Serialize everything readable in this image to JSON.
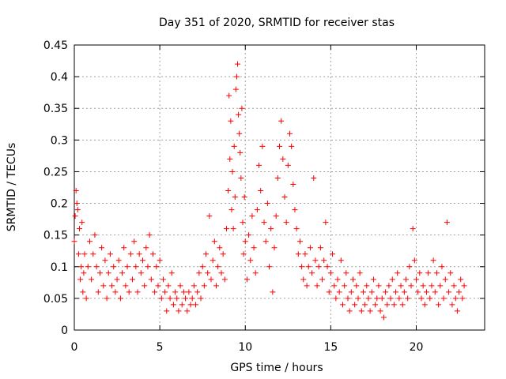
{
  "chart_data": {
    "type": "scatter",
    "title": "Day 351 of 2020, SRMTID for receiver stas",
    "xlabel": "GPS time / hours",
    "ylabel": "SRMTID / TECUs",
    "xlim": [
      0,
      24
    ],
    "ylim": [
      0,
      0.45
    ],
    "xticks": [
      0,
      5,
      10,
      15,
      20
    ],
    "xtick_labels": [
      "0",
      "5",
      "10",
      "15",
      "20"
    ],
    "yticks": [
      0,
      0.05,
      0.1,
      0.15,
      0.2,
      0.25,
      0.3,
      0.35,
      0.4,
      0.45
    ],
    "ytick_labels": [
      "0",
      "0.05",
      "0.1",
      "0.15",
      "0.2",
      "0.25",
      "0.3",
      "0.35",
      "0.4",
      "0.45"
    ],
    "grid": true,
    "marker": "+",
    "marker_color": "#ff0000",
    "series": [
      {
        "name": "SRMTID",
        "points": [
          [
            0.0,
            0.14
          ],
          [
            0.05,
            0.18
          ],
          [
            0.1,
            0.22
          ],
          [
            0.15,
            0.2
          ],
          [
            0.2,
            0.19
          ],
          [
            0.25,
            0.12
          ],
          [
            0.3,
            0.16
          ],
          [
            0.35,
            0.08
          ],
          [
            0.4,
            0.1
          ],
          [
            0.45,
            0.17
          ],
          [
            0.5,
            0.06
          ],
          [
            0.55,
            0.09
          ],
          [
            0.6,
            0.12
          ],
          [
            0.7,
            0.05
          ],
          [
            0.8,
            0.1
          ],
          [
            0.9,
            0.14
          ],
          [
            1.0,
            0.08
          ],
          [
            1.1,
            0.12
          ],
          [
            1.2,
            0.15
          ],
          [
            1.3,
            0.1
          ],
          [
            1.4,
            0.06
          ],
          [
            1.5,
            0.09
          ],
          [
            1.6,
            0.13
          ],
          [
            1.7,
            0.07
          ],
          [
            1.8,
            0.11
          ],
          [
            1.9,
            0.05
          ],
          [
            2.0,
            0.09
          ],
          [
            2.1,
            0.12
          ],
          [
            2.2,
            0.07
          ],
          [
            2.3,
            0.1
          ],
          [
            2.4,
            0.06
          ],
          [
            2.5,
            0.08
          ],
          [
            2.6,
            0.11
          ],
          [
            2.7,
            0.05
          ],
          [
            2.8,
            0.09
          ],
          [
            2.9,
            0.13
          ],
          [
            3.0,
            0.07
          ],
          [
            3.1,
            0.1
          ],
          [
            3.2,
            0.06
          ],
          [
            3.3,
            0.12
          ],
          [
            3.4,
            0.08
          ],
          [
            3.5,
            0.14
          ],
          [
            3.6,
            0.1
          ],
          [
            3.7,
            0.06
          ],
          [
            3.8,
            0.12
          ],
          [
            3.9,
            0.09
          ],
          [
            4.0,
            0.11
          ],
          [
            4.1,
            0.07
          ],
          [
            4.2,
            0.13
          ],
          [
            4.3,
            0.1
          ],
          [
            4.4,
            0.15
          ],
          [
            4.5,
            0.08
          ],
          [
            4.6,
            0.12
          ],
          [
            4.7,
            0.06
          ],
          [
            4.8,
            0.1
          ],
          [
            4.9,
            0.07
          ],
          [
            5.0,
            0.11
          ],
          [
            5.1,
            0.05
          ],
          [
            5.2,
            0.08
          ],
          [
            5.3,
            0.06
          ],
          [
            5.4,
            0.03
          ],
          [
            5.5,
            0.07
          ],
          [
            5.6,
            0.05
          ],
          [
            5.7,
            0.09
          ],
          [
            5.8,
            0.04
          ],
          [
            5.9,
            0.06
          ],
          [
            6.0,
            0.05
          ],
          [
            6.1,
            0.03
          ],
          [
            6.2,
            0.07
          ],
          [
            6.3,
            0.04
          ],
          [
            6.4,
            0.06
          ],
          [
            6.5,
            0.05
          ],
          [
            6.6,
            0.03
          ],
          [
            6.7,
            0.06
          ],
          [
            6.8,
            0.04
          ],
          [
            6.9,
            0.05
          ],
          [
            7.0,
            0.07
          ],
          [
            7.1,
            0.04
          ],
          [
            7.2,
            0.06
          ],
          [
            7.3,
            0.09
          ],
          [
            7.4,
            0.05
          ],
          [
            7.5,
            0.1
          ],
          [
            7.6,
            0.07
          ],
          [
            7.7,
            0.12
          ],
          [
            7.8,
            0.09
          ],
          [
            7.9,
            0.18
          ],
          [
            8.0,
            0.08
          ],
          [
            8.1,
            0.11
          ],
          [
            8.2,
            0.14
          ],
          [
            8.3,
            0.07
          ],
          [
            8.4,
            0.1
          ],
          [
            8.5,
            0.13
          ],
          [
            8.6,
            0.09
          ],
          [
            8.7,
            0.12
          ],
          [
            8.8,
            0.08
          ],
          [
            8.9,
            0.16
          ],
          [
            9.0,
            0.22
          ],
          [
            9.05,
            0.37
          ],
          [
            9.1,
            0.27
          ],
          [
            9.15,
            0.33
          ],
          [
            9.2,
            0.19
          ],
          [
            9.25,
            0.25
          ],
          [
            9.3,
            0.16
          ],
          [
            9.35,
            0.29
          ],
          [
            9.4,
            0.21
          ],
          [
            9.45,
            0.38
          ],
          [
            9.5,
            0.4
          ],
          [
            9.55,
            0.42
          ],
          [
            9.6,
            0.34
          ],
          [
            9.65,
            0.31
          ],
          [
            9.7,
            0.28
          ],
          [
            9.75,
            0.24
          ],
          [
            9.8,
            0.35
          ],
          [
            9.85,
            0.17
          ],
          [
            9.9,
            0.12
          ],
          [
            9.95,
            0.21
          ],
          [
            10.0,
            0.14
          ],
          [
            10.1,
            0.08
          ],
          [
            10.2,
            0.15
          ],
          [
            10.3,
            0.11
          ],
          [
            10.4,
            0.18
          ],
          [
            10.5,
            0.13
          ],
          [
            10.6,
            0.09
          ],
          [
            10.7,
            0.19
          ],
          [
            10.8,
            0.26
          ],
          [
            10.9,
            0.22
          ],
          [
            11.0,
            0.29
          ],
          [
            11.1,
            0.17
          ],
          [
            11.2,
            0.14
          ],
          [
            11.3,
            0.2
          ],
          [
            11.4,
            0.1
          ],
          [
            11.5,
            0.16
          ],
          [
            11.6,
            0.06
          ],
          [
            11.7,
            0.13
          ],
          [
            11.8,
            0.18
          ],
          [
            11.9,
            0.24
          ],
          [
            12.0,
            0.29
          ],
          [
            12.1,
            0.33
          ],
          [
            12.2,
            0.27
          ],
          [
            12.3,
            0.21
          ],
          [
            12.4,
            0.17
          ],
          [
            12.5,
            0.26
          ],
          [
            12.6,
            0.31
          ],
          [
            12.7,
            0.29
          ],
          [
            12.8,
            0.23
          ],
          [
            12.9,
            0.19
          ],
          [
            13.0,
            0.16
          ],
          [
            13.1,
            0.12
          ],
          [
            13.2,
            0.14
          ],
          [
            13.3,
            0.1
          ],
          [
            13.4,
            0.08
          ],
          [
            13.5,
            0.12
          ],
          [
            13.6,
            0.07
          ],
          [
            13.7,
            0.1
          ],
          [
            13.8,
            0.13
          ],
          [
            13.9,
            0.09
          ],
          [
            14.0,
            0.24
          ],
          [
            14.1,
            0.11
          ],
          [
            14.2,
            0.07
          ],
          [
            14.3,
            0.1
          ],
          [
            14.4,
            0.13
          ],
          [
            14.5,
            0.08
          ],
          [
            14.6,
            0.11
          ],
          [
            14.7,
            0.17
          ],
          [
            14.8,
            0.1
          ],
          [
            14.9,
            0.06
          ],
          [
            15.0,
            0.09
          ],
          [
            15.1,
            0.12
          ],
          [
            15.2,
            0.07
          ],
          [
            15.3,
            0.05
          ],
          [
            15.4,
            0.08
          ],
          [
            15.5,
            0.06
          ],
          [
            15.6,
            0.11
          ],
          [
            15.7,
            0.04
          ],
          [
            15.8,
            0.07
          ],
          [
            15.9,
            0.09
          ],
          [
            16.0,
            0.05
          ],
          [
            16.1,
            0.03
          ],
          [
            16.2,
            0.06
          ],
          [
            16.3,
            0.08
          ],
          [
            16.4,
            0.04
          ],
          [
            16.5,
            0.07
          ],
          [
            16.6,
            0.05
          ],
          [
            16.7,
            0.09
          ],
          [
            16.8,
            0.03
          ],
          [
            16.9,
            0.06
          ],
          [
            17.0,
            0.04
          ],
          [
            17.1,
            0.07
          ],
          [
            17.2,
            0.05
          ],
          [
            17.3,
            0.03
          ],
          [
            17.4,
            0.06
          ],
          [
            17.5,
            0.08
          ],
          [
            17.6,
            0.04
          ],
          [
            17.7,
            0.05
          ],
          [
            17.8,
            0.07
          ],
          [
            17.9,
            0.03
          ],
          [
            18.0,
            0.05
          ],
          [
            18.1,
            0.02
          ],
          [
            18.2,
            0.06
          ],
          [
            18.3,
            0.04
          ],
          [
            18.4,
            0.07
          ],
          [
            18.5,
            0.05
          ],
          [
            18.6,
            0.08
          ],
          [
            18.7,
            0.04
          ],
          [
            18.8,
            0.06
          ],
          [
            18.9,
            0.09
          ],
          [
            19.0,
            0.05
          ],
          [
            19.1,
            0.07
          ],
          [
            19.2,
            0.04
          ],
          [
            19.3,
            0.06
          ],
          [
            19.4,
            0.08
          ],
          [
            19.5,
            0.05
          ],
          [
            19.6,
            0.1
          ],
          [
            19.7,
            0.07
          ],
          [
            19.8,
            0.16
          ],
          [
            19.9,
            0.11
          ],
          [
            20.0,
            0.08
          ],
          [
            20.1,
            0.06
          ],
          [
            20.2,
            0.09
          ],
          [
            20.3,
            0.05
          ],
          [
            20.4,
            0.07
          ],
          [
            20.5,
            0.04
          ],
          [
            20.6,
            0.06
          ],
          [
            20.7,
            0.09
          ],
          [
            20.8,
            0.05
          ],
          [
            20.9,
            0.07
          ],
          [
            21.0,
            0.11
          ],
          [
            21.1,
            0.06
          ],
          [
            21.2,
            0.09
          ],
          [
            21.3,
            0.04
          ],
          [
            21.4,
            0.07
          ],
          [
            21.5,
            0.1
          ],
          [
            21.6,
            0.05
          ],
          [
            21.7,
            0.08
          ],
          [
            21.8,
            0.17
          ],
          [
            21.9,
            0.06
          ],
          [
            22.0,
            0.09
          ],
          [
            22.1,
            0.04
          ],
          [
            22.2,
            0.07
          ],
          [
            22.3,
            0.05
          ],
          [
            22.4,
            0.03
          ],
          [
            22.5,
            0.06
          ],
          [
            22.6,
            0.08
          ],
          [
            22.7,
            0.05
          ],
          [
            22.8,
            0.07
          ]
        ]
      }
    ]
  }
}
